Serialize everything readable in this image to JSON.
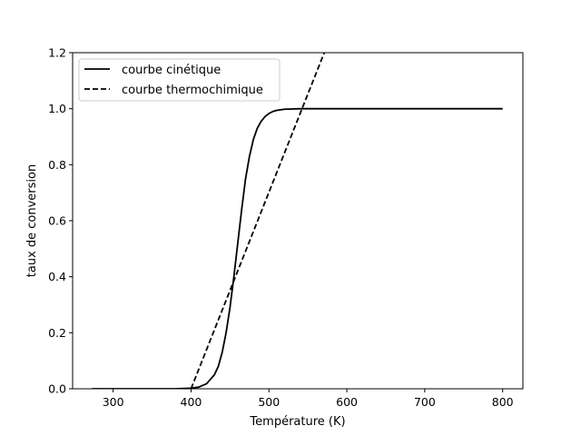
{
  "chart_data": {
    "type": "line",
    "title": "",
    "xlabel": "Température (K)",
    "ylabel": "taux de conversion",
    "xlim": [
      248,
      826
    ],
    "ylim": [
      0,
      1.2
    ],
    "xticks": [
      300,
      400,
      500,
      600,
      700,
      800
    ],
    "yticks": [
      0.0,
      0.2,
      0.4,
      0.6,
      0.8,
      1.0,
      1.2
    ],
    "grid": false,
    "legend_position": "top-left",
    "series": [
      {
        "name": "courbe cinétique",
        "style": "solid",
        "color": "#000000",
        "x": [
          273,
          300,
          350,
          380,
          400,
          410,
          420,
          430,
          435,
          440,
          445,
          450,
          455,
          460,
          465,
          470,
          475,
          480,
          485,
          490,
          495,
          500,
          505,
          510,
          520,
          530,
          540,
          550,
          575,
          600,
          700,
          800
        ],
        "y": [
          0.0,
          0.0,
          0.0,
          0.0,
          0.002,
          0.006,
          0.018,
          0.05,
          0.08,
          0.13,
          0.2,
          0.29,
          0.4,
          0.52,
          0.64,
          0.75,
          0.83,
          0.89,
          0.93,
          0.955,
          0.972,
          0.983,
          0.99,
          0.994,
          0.998,
          0.999,
          1.0,
          1.0,
          1.0,
          1.0,
          1.0,
          1.0
        ]
      },
      {
        "name": "courbe thermochimique",
        "style": "dashed",
        "color": "#000000",
        "x": [
          400,
          571
        ],
        "y": [
          0.0,
          1.2
        ]
      }
    ]
  }
}
